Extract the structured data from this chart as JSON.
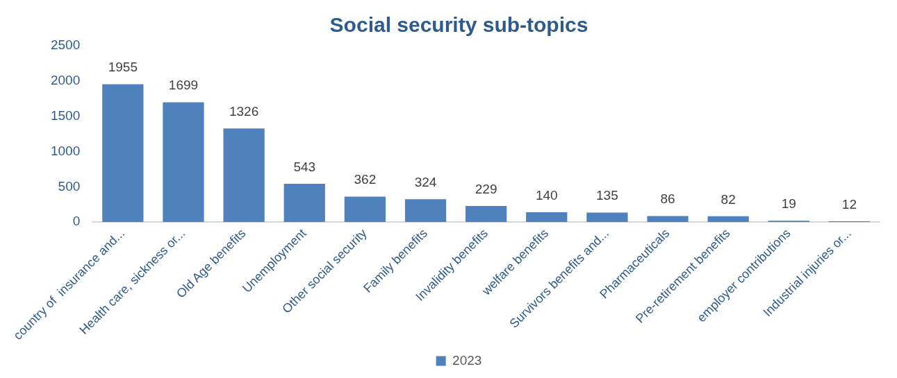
{
  "chart_data": {
    "type": "bar",
    "title": "Social security sub-topics",
    "categories": [
      "country of  insurance and...",
      "Health care, sickness or...",
      "Old Age benefits",
      "Unemployment",
      "Other social security",
      "Family benefits",
      "Invalidity benefits",
      "welfare benefits",
      "Survivors benefits and...",
      "Pharmaceuticals",
      "Pre-retirement benefits",
      "employer contributions",
      "Industrial injuries or..."
    ],
    "series": [
      {
        "name": "2023",
        "color": "#4f81bd",
        "values": [
          1955,
          1699,
          1326,
          543,
          362,
          324,
          229,
          140,
          135,
          86,
          82,
          19,
          12
        ]
      }
    ],
    "ylim": [
      0,
      2500
    ],
    "yticks": [
      0,
      500,
      1000,
      1500,
      2000,
      2500
    ],
    "data_labels": true,
    "grid": false,
    "legend": "bottom"
  }
}
